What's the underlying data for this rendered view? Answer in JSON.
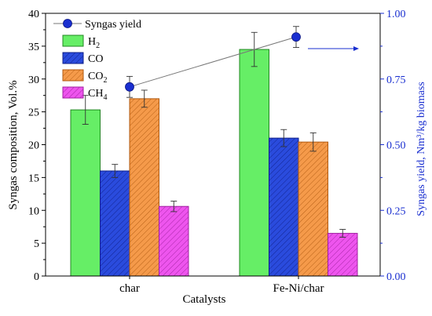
{
  "chart_data": {
    "type": "bar",
    "categories": [
      "char",
      "Fe-Ni/char"
    ],
    "xlabel": "Catalysts",
    "ylabel": "Syngas composition, Vol.%",
    "ylabel_right": "Syngas yield, Nm³/kg biomass",
    "ylim": [
      0,
      40
    ],
    "ylim_right": [
      0,
      1.0
    ],
    "yticks": [
      "0",
      "5",
      "10",
      "15",
      "20",
      "25",
      "30",
      "35",
      "40"
    ],
    "yticks_right": [
      "0.00",
      "0.25",
      "0.50",
      "0.75",
      "1.00"
    ],
    "series": [
      {
        "name": "H",
        "sub": "2",
        "values": [
          25.3,
          34.5
        ],
        "errors": [
          2.2,
          2.6
        ],
        "fill": "#66ee66",
        "stroke": "#228822",
        "hatch": false
      },
      {
        "name": "CO",
        "sub": "",
        "values": [
          16.0,
          21.0
        ],
        "errors": [
          1.0,
          1.3
        ],
        "fill": "#2a4bdd",
        "stroke": "#10208a",
        "hatch": true
      },
      {
        "name": "CO",
        "sub": "2",
        "values": [
          27.0,
          20.4
        ],
        "errors": [
          1.3,
          1.4
        ],
        "fill": "#f59a4a",
        "stroke": "#b05a10",
        "hatch": true
      },
      {
        "name": "CH",
        "sub": "4",
        "values": [
          10.6,
          6.5
        ],
        "errors": [
          0.8,
          0.6
        ],
        "fill": "#ee55ee",
        "stroke": "#a020a0",
        "hatch": true
      }
    ],
    "line_series": {
      "name": "Syngas yield",
      "axis": "right",
      "values": [
        0.72,
        0.91
      ],
      "errors": [
        0.04,
        0.04
      ],
      "color": "#1a2fd0"
    },
    "legend": "top-left",
    "grid": false
  }
}
